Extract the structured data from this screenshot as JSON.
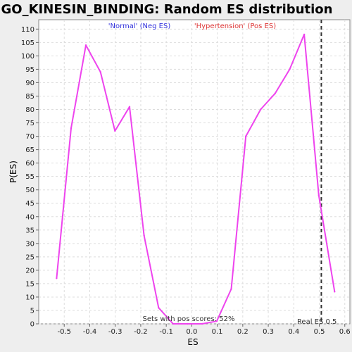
{
  "chart_data": {
    "type": "line",
    "title": "GO_KINESIN_BINDING: Random ES distribution",
    "xlabel": "ES",
    "ylabel": "P(ES)",
    "xlim": [
      -0.6,
      0.62
    ],
    "ylim": [
      0,
      113.5
    ],
    "xticks": [
      -0.5,
      -0.4,
      -0.3,
      -0.2,
      -0.1,
      0.0,
      0.1,
      0.2,
      0.3,
      0.4,
      0.5,
      0.6
    ],
    "xtick_labels": [
      "-0.5",
      "-0.4",
      "-0.3",
      "-0.2",
      "-0.1",
      "0.0",
      "0.1",
      "0.2",
      "0.3",
      "0.4",
      "0.5",
      "0.6"
    ],
    "yticks": [
      0,
      5,
      10,
      15,
      20,
      25,
      30,
      35,
      40,
      45,
      50,
      55,
      60,
      65,
      70,
      75,
      80,
      85,
      90,
      95,
      100,
      105,
      110
    ],
    "grid": true,
    "series": [
      {
        "color": "#ee44ee",
        "x": [
          -0.53,
          -0.473,
          -0.415,
          -0.358,
          -0.301,
          -0.244,
          -0.187,
          -0.13,
          -0.073,
          -0.016,
          0.041,
          0.098,
          0.155,
          0.212,
          0.27,
          0.327,
          0.384,
          0.441,
          0.498,
          0.56
        ],
        "y": [
          17,
          73,
          104,
          94,
          72,
          81,
          33,
          6,
          0,
          0,
          0,
          1,
          13,
          70,
          80,
          86,
          95,
          108,
          48,
          12
        ]
      }
    ],
    "legend": {
      "neg": "'Normal' (Neg ES)",
      "pos": "'Hypertension' (Pos ES)",
      "neg_color": "#3333dd",
      "pos_color": "#dd3333"
    },
    "real_es": {
      "x": 0.508,
      "label": "Real ES 0.5"
    },
    "annotation": "Sets with pos scores: 52%"
  }
}
